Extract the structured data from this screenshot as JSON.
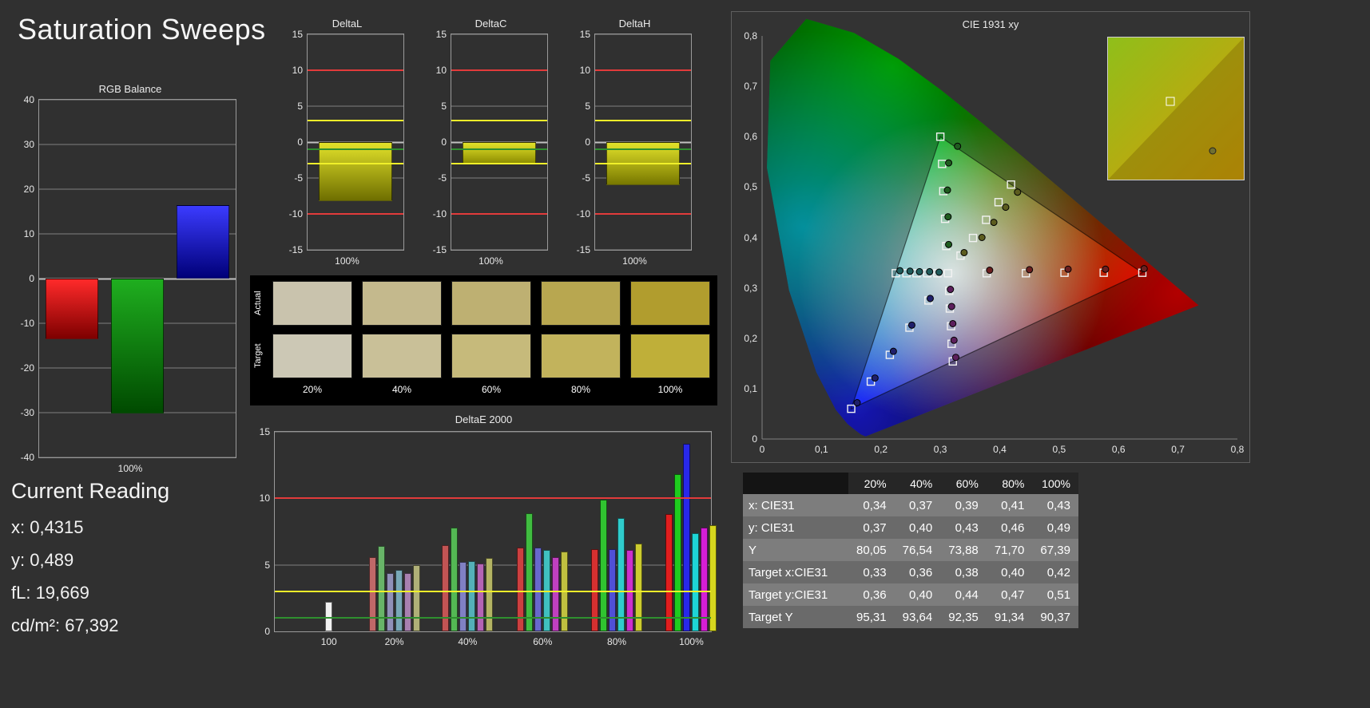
{
  "title": "Saturation Sweeps",
  "current_reading": {
    "heading": "Current Reading",
    "lines": [
      "x: 0,4315",
      "y: 0,489",
      "fL: 19,669",
      "cd/m²: 67,392"
    ]
  },
  "swatch_panel": {
    "row_labels": [
      "Actual",
      "Target"
    ],
    "col_labels": [
      "20%",
      "40%",
      "60%",
      "80%",
      "100%"
    ],
    "actual_colors": [
      "#c9c3ad",
      "#c4b98d",
      "#beb072",
      "#b8a750",
      "#b19d2e"
    ],
    "target_colors": [
      "#ccc8b5",
      "#c9c098",
      "#c6ba7b",
      "#c2b35c",
      "#bfaf39"
    ]
  },
  "chart_data": [
    {
      "id": "rgb_balance",
      "type": "bar",
      "title": "RGB Balance",
      "xlabel": "100%",
      "ylim": [
        -40,
        40
      ],
      "yticks": [
        40,
        30,
        20,
        10,
        0,
        -10,
        -20,
        -30,
        -40
      ],
      "categories": [
        "Red",
        "Green",
        "Blue"
      ],
      "values": [
        -13.5,
        -30.2,
        16.5
      ],
      "grad_top": [
        "#ff2a2a",
        "#1fae1f",
        "#3b3bff"
      ],
      "grad_bottom": [
        "#7e0000",
        "#004a00",
        "#000078"
      ],
      "ref_lines": []
    },
    {
      "id": "deltaL",
      "type": "bar",
      "title": "DeltaL",
      "xlabel": "100%",
      "ylim": [
        -15,
        15
      ],
      "yticks": [
        15,
        10,
        5,
        0,
        -5,
        -10,
        -15
      ],
      "categories": [
        "100%"
      ],
      "values": [
        -8.2
      ],
      "grad_top": [
        "#e2e22a"
      ],
      "grad_bottom": [
        "#6e6e00"
      ],
      "ref_lines": [
        {
          "v": 10,
          "c": "#e23b3b"
        },
        {
          "v": -10,
          "c": "#e23b3b"
        },
        {
          "v": 3,
          "c": "#f0f02a"
        },
        {
          "v": -3,
          "c": "#f0f02a"
        },
        {
          "v": -1,
          "c": "#2f8f2f"
        }
      ]
    },
    {
      "id": "deltaC",
      "type": "bar",
      "title": "DeltaC",
      "xlabel": "100%",
      "ylim": [
        -15,
        15
      ],
      "yticks": [
        15,
        10,
        5,
        0,
        -5,
        -10,
        -15
      ],
      "categories": [
        "100%"
      ],
      "values": [
        -3.1
      ],
      "grad_top": [
        "#e2e22a"
      ],
      "grad_bottom": [
        "#8a8a00"
      ],
      "ref_lines": [
        {
          "v": 10,
          "c": "#e23b3b"
        },
        {
          "v": -10,
          "c": "#e23b3b"
        },
        {
          "v": 3,
          "c": "#f0f02a"
        },
        {
          "v": -3,
          "c": "#f0f02a"
        },
        {
          "v": -1,
          "c": "#2f8f2f"
        }
      ]
    },
    {
      "id": "deltaH",
      "type": "bar",
      "title": "DeltaH",
      "xlabel": "100%",
      "ylim": [
        -15,
        15
      ],
      "yticks": [
        15,
        10,
        5,
        0,
        -5,
        -10,
        -15
      ],
      "categories": [
        "100%"
      ],
      "values": [
        -6.0
      ],
      "grad_top": [
        "#e2e22a"
      ],
      "grad_bottom": [
        "#787800"
      ],
      "ref_lines": [
        {
          "v": 10,
          "c": "#e23b3b"
        },
        {
          "v": -10,
          "c": "#e23b3b"
        },
        {
          "v": 3,
          "c": "#f0f02a"
        },
        {
          "v": -3,
          "c": "#f0f02a"
        },
        {
          "v": -1,
          "c": "#2f8f2f"
        }
      ]
    },
    {
      "id": "deltaE2000",
      "type": "grouped-bar",
      "title": "DeltaE 2000",
      "ylim": [
        0,
        15
      ],
      "yticks": [
        0,
        5,
        10,
        15
      ],
      "ref_lines": [
        {
          "v": 10,
          "c": "#e23b3b"
        },
        {
          "v": 3,
          "c": "#f0f02a"
        },
        {
          "v": 1,
          "c": "#2f8f2f"
        }
      ],
      "groups": [
        {
          "label": "100",
          "center": 0.124,
          "bars": [
            {
              "v": 2.2,
              "c": "#f2f2f2"
            }
          ]
        },
        {
          "label": "20%",
          "center": 0.274,
          "bars": [
            {
              "v": 5.6,
              "c": "#c06868"
            },
            {
              "v": 6.4,
              "c": "#68b468"
            },
            {
              "v": 4.4,
              "c": "#9090b8"
            },
            {
              "v": 4.6,
              "c": "#78a8b8"
            },
            {
              "v": 4.4,
              "c": "#a880b0"
            },
            {
              "v": 5.0,
              "c": "#b0b078"
            }
          ]
        },
        {
          "label": "40%",
          "center": 0.442,
          "bars": [
            {
              "v": 6.5,
              "c": "#c25454"
            },
            {
              "v": 7.8,
              "c": "#54b854"
            },
            {
              "v": 5.2,
              "c": "#8080c4"
            },
            {
              "v": 5.3,
              "c": "#54b0b8"
            },
            {
              "v": 5.1,
              "c": "#b464b4"
            },
            {
              "v": 5.5,
              "c": "#b4b464"
            }
          ]
        },
        {
          "label": "60%",
          "center": 0.614,
          "bars": [
            {
              "v": 6.3,
              "c": "#cc4040"
            },
            {
              "v": 8.9,
              "c": "#40bc40"
            },
            {
              "v": 6.3,
              "c": "#6868cc"
            },
            {
              "v": 6.1,
              "c": "#40c0c0"
            },
            {
              "v": 5.6,
              "c": "#c040c0"
            },
            {
              "v": 6.0,
              "c": "#c0c040"
            }
          ]
        },
        {
          "label": "80%",
          "center": 0.784,
          "bars": [
            {
              "v": 6.2,
              "c": "#d63030"
            },
            {
              "v": 9.9,
              "c": "#30c430"
            },
            {
              "v": 6.2,
              "c": "#5050d6"
            },
            {
              "v": 8.5,
              "c": "#30cccc"
            },
            {
              "v": 6.1,
              "c": "#cc30cc"
            },
            {
              "v": 6.6,
              "c": "#cccc30"
            }
          ]
        },
        {
          "label": "100%",
          "center": 0.955,
          "bars": [
            {
              "v": 8.8,
              "c": "#e01e1e"
            },
            {
              "v": 11.8,
              "c": "#1ecc1e"
            },
            {
              "v": 14.1,
              "c": "#2828ea"
            },
            {
              "v": 7.4,
              "c": "#1ed6d6"
            },
            {
              "v": 7.8,
              "c": "#d61ed6"
            },
            {
              "v": 8.0,
              "c": "#d6d61e"
            }
          ]
        }
      ]
    }
  ],
  "cie": {
    "title": "CIE 1931 xy",
    "xlim": [
      0,
      0.8
    ],
    "ylim": [
      0,
      0.8
    ],
    "xticks": [
      "0",
      "0,1",
      "0,2",
      "0,3",
      "0,4",
      "0,5",
      "0,6",
      "0,7",
      "0,8"
    ],
    "yticks": [
      "0",
      "0,1",
      "0,2",
      "0,3",
      "0,4",
      "0,5",
      "0,6",
      "0,7",
      "0,8"
    ],
    "triangle": [
      [
        0.64,
        0.33
      ],
      [
        0.3,
        0.6
      ],
      [
        0.15,
        0.06
      ]
    ],
    "targets": [
      [
        0.313,
        0.329
      ],
      [
        0.378,
        0.329
      ],
      [
        0.444,
        0.329
      ],
      [
        0.509,
        0.33
      ],
      [
        0.575,
        0.33
      ],
      [
        0.64,
        0.33
      ],
      [
        0.31,
        0.383
      ],
      [
        0.308,
        0.437
      ],
      [
        0.305,
        0.492
      ],
      [
        0.303,
        0.546
      ],
      [
        0.3,
        0.6
      ],
      [
        0.28,
        0.275
      ],
      [
        0.248,
        0.221
      ],
      [
        0.215,
        0.167
      ],
      [
        0.183,
        0.114
      ],
      [
        0.15,
        0.06
      ],
      [
        0.295,
        0.329
      ],
      [
        0.278,
        0.329
      ],
      [
        0.26,
        0.329
      ],
      [
        0.243,
        0.329
      ],
      [
        0.225,
        0.329
      ],
      [
        0.315,
        0.294
      ],
      [
        0.316,
        0.259
      ],
      [
        0.318,
        0.224
      ],
      [
        0.319,
        0.189
      ],
      [
        0.321,
        0.154
      ],
      [
        0.334,
        0.364
      ],
      [
        0.355,
        0.399
      ],
      [
        0.377,
        0.435
      ],
      [
        0.398,
        0.47
      ],
      [
        0.419,
        0.505
      ]
    ],
    "measurements": [
      {
        "x": 0.383,
        "y": 0.335,
        "c": "#6b1f1f"
      },
      {
        "x": 0.45,
        "y": 0.336,
        "c": "#6b1f1f"
      },
      {
        "x": 0.515,
        "y": 0.337,
        "c": "#6b1f1f"
      },
      {
        "x": 0.578,
        "y": 0.337,
        "c": "#6b1f1f"
      },
      {
        "x": 0.643,
        "y": 0.338,
        "c": "#6b1f1f"
      },
      {
        "x": 0.314,
        "y": 0.386,
        "c": "#1f5c1f"
      },
      {
        "x": 0.313,
        "y": 0.441,
        "c": "#1f5c1f"
      },
      {
        "x": 0.312,
        "y": 0.494,
        "c": "#1f5c1f"
      },
      {
        "x": 0.314,
        "y": 0.548,
        "c": "#1f5c1f"
      },
      {
        "x": 0.329,
        "y": 0.581,
        "c": "#1f5c1f"
      },
      {
        "x": 0.283,
        "y": 0.279,
        "c": "#1f1f6b"
      },
      {
        "x": 0.252,
        "y": 0.226,
        "c": "#1f1f6b"
      },
      {
        "x": 0.221,
        "y": 0.174,
        "c": "#1f1f6b"
      },
      {
        "x": 0.19,
        "y": 0.121,
        "c": "#1f1f6b"
      },
      {
        "x": 0.16,
        "y": 0.072,
        "c": "#1f1f6b"
      },
      {
        "x": 0.298,
        "y": 0.331,
        "c": "#1f5c5c"
      },
      {
        "x": 0.282,
        "y": 0.332,
        "c": "#1f5c5c"
      },
      {
        "x": 0.265,
        "y": 0.332,
        "c": "#1f5c5c"
      },
      {
        "x": 0.249,
        "y": 0.333,
        "c": "#1f5c5c"
      },
      {
        "x": 0.232,
        "y": 0.334,
        "c": "#1f5c5c"
      },
      {
        "x": 0.317,
        "y": 0.297,
        "c": "#5c1f5c"
      },
      {
        "x": 0.319,
        "y": 0.263,
        "c": "#5c1f5c"
      },
      {
        "x": 0.321,
        "y": 0.229,
        "c": "#5c1f5c"
      },
      {
        "x": 0.323,
        "y": 0.196,
        "c": "#5c1f5c"
      },
      {
        "x": 0.326,
        "y": 0.162,
        "c": "#5c1f5c"
      },
      {
        "x": 0.34,
        "y": 0.37,
        "c": "#5c5c1f"
      },
      {
        "x": 0.37,
        "y": 0.4,
        "c": "#5c5c1f"
      },
      {
        "x": 0.39,
        "y": 0.43,
        "c": "#5c5c1f"
      },
      {
        "x": 0.41,
        "y": 0.46,
        "c": "#5c5c1f"
      },
      {
        "x": 0.43,
        "y": 0.49,
        "c": "#5c5c1f"
      }
    ],
    "inset": {
      "square": [
        0.46,
        0.45
      ],
      "dot": [
        0.77,
        0.8
      ],
      "colors": [
        "#8fbf1a",
        "#b7ab10",
        "#c89a08"
      ],
      "dot_color": "#707030"
    }
  },
  "table": {
    "header": [
      "",
      "20%",
      "40%",
      "60%",
      "80%",
      "100%"
    ],
    "rows": [
      {
        "label": "x: CIE31",
        "values": [
          "0,34",
          "0,37",
          "0,39",
          "0,41",
          "0,43"
        ]
      },
      {
        "label": "y: CIE31",
        "values": [
          "0,37",
          "0,40",
          "0,43",
          "0,46",
          "0,49"
        ]
      },
      {
        "label": "Y",
        "values": [
          "80,05",
          "76,54",
          "73,88",
          "71,70",
          "67,39"
        ]
      },
      {
        "label": "Target x:CIE31",
        "values": [
          "0,33",
          "0,36",
          "0,38",
          "0,40",
          "0,42"
        ]
      },
      {
        "label": "Target y:CIE31",
        "values": [
          "0,36",
          "0,40",
          "0,44",
          "0,47",
          "0,51"
        ]
      },
      {
        "label": "Target Y",
        "values": [
          "95,31",
          "93,64",
          "92,35",
          "91,34",
          "90,37"
        ]
      }
    ]
  }
}
